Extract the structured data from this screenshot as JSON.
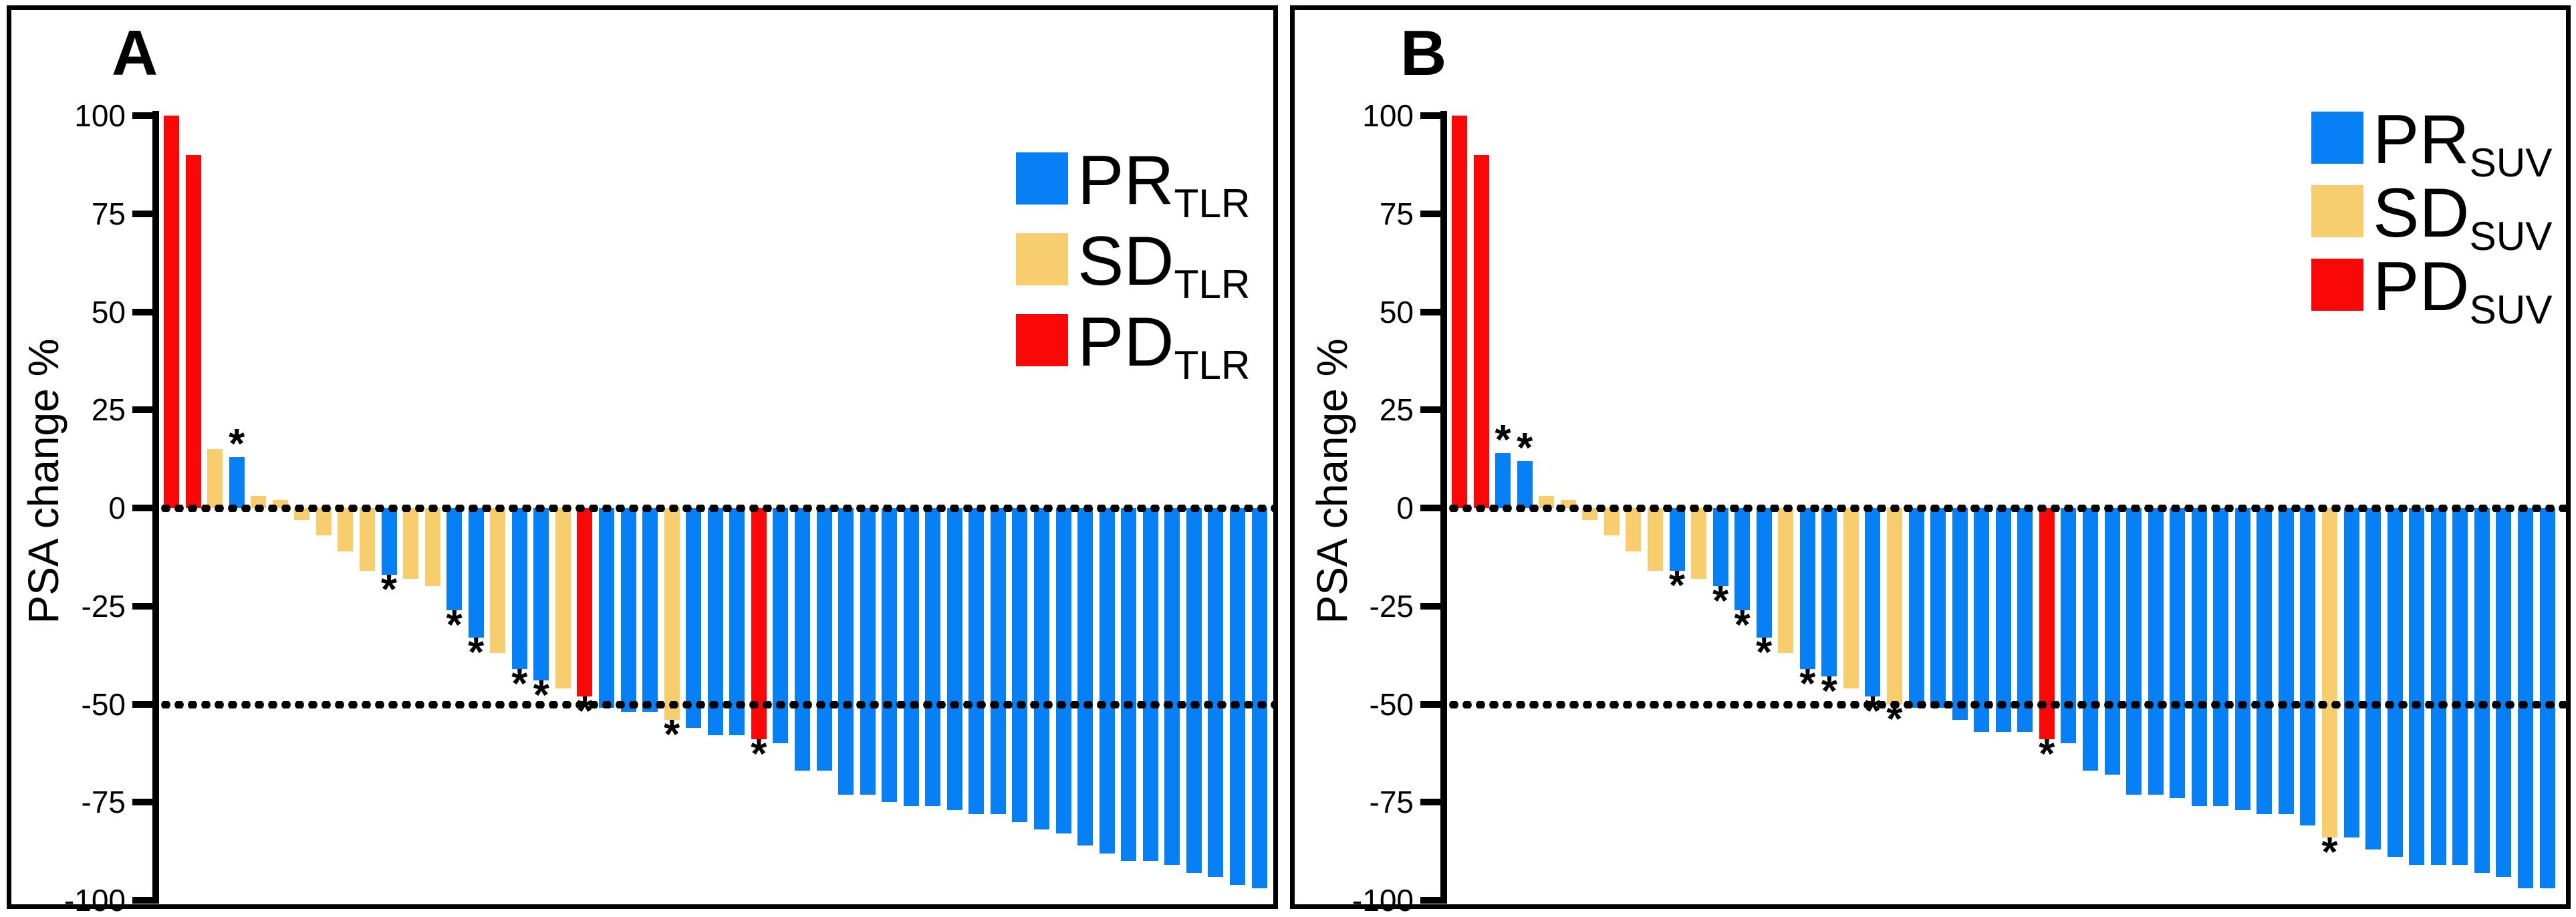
{
  "figure": {
    "colors": {
      "PR": "#0780f5",
      "SD": "#f8cd6e",
      "PD": "#fa0808"
    },
    "reference_line_color": "#000000",
    "axis_color": "#000000"
  },
  "chart_data": [
    {
      "type": "bar",
      "panel_label": "A",
      "title": "",
      "xlabel": "",
      "ylabel": "PSA change %",
      "ylim": [
        -100,
        100
      ],
      "yticks": [
        100,
        75,
        50,
        25,
        0,
        -25,
        -50,
        -75,
        -100
      ],
      "reference_lines": [
        0,
        -50
      ],
      "grid": false,
      "legend_position": "top-right",
      "legend": [
        {
          "label": "PR",
          "subscript": "TLR",
          "color_key": "PR"
        },
        {
          "label": "SD",
          "subscript": "TLR",
          "color_key": "SD"
        },
        {
          "label": "PD",
          "subscript": "TLR",
          "color_key": "PD"
        }
      ],
      "bars": [
        {
          "value": 100,
          "group": "PD"
        },
        {
          "value": 90,
          "group": "PD"
        },
        {
          "value": 15,
          "group": "SD"
        },
        {
          "value": 13,
          "group": "PR",
          "star": "above"
        },
        {
          "value": 3,
          "group": "SD"
        },
        {
          "value": 2,
          "group": "SD"
        },
        {
          "value": -3,
          "group": "SD"
        },
        {
          "value": -7,
          "group": "SD"
        },
        {
          "value": -11,
          "group": "SD"
        },
        {
          "value": -16,
          "group": "SD"
        },
        {
          "value": -17,
          "group": "PR",
          "star": "below"
        },
        {
          "value": -18,
          "group": "SD"
        },
        {
          "value": -20,
          "group": "SD"
        },
        {
          "value": -26,
          "group": "PR",
          "star": "below"
        },
        {
          "value": -33,
          "group": "PR",
          "star": "below"
        },
        {
          "value": -37,
          "group": "SD"
        },
        {
          "value": -41,
          "group": "PR",
          "star": "below"
        },
        {
          "value": -44,
          "group": "PR",
          "star": "below"
        },
        {
          "value": -46,
          "group": "SD"
        },
        {
          "value": -48,
          "group": "PD",
          "star": "below"
        },
        {
          "value": -51,
          "group": "PR"
        },
        {
          "value": -52,
          "group": "PR"
        },
        {
          "value": -52,
          "group": "PR"
        },
        {
          "value": -54,
          "group": "SD",
          "star": "below"
        },
        {
          "value": -56,
          "group": "PR"
        },
        {
          "value": -58,
          "group": "PR"
        },
        {
          "value": -58,
          "group": "PR"
        },
        {
          "value": -59,
          "group": "PD",
          "star": "below"
        },
        {
          "value": -60,
          "group": "PR"
        },
        {
          "value": -67,
          "group": "PR"
        },
        {
          "value": -67,
          "group": "PR"
        },
        {
          "value": -73,
          "group": "PR"
        },
        {
          "value": -73,
          "group": "PR"
        },
        {
          "value": -75,
          "group": "PR"
        },
        {
          "value": -76,
          "group": "PR"
        },
        {
          "value": -76,
          "group": "PR"
        },
        {
          "value": -77,
          "group": "PR"
        },
        {
          "value": -78,
          "group": "PR"
        },
        {
          "value": -78,
          "group": "PR"
        },
        {
          "value": -80,
          "group": "PR"
        },
        {
          "value": -82,
          "group": "PR"
        },
        {
          "value": -83,
          "group": "PR"
        },
        {
          "value": -86,
          "group": "PR"
        },
        {
          "value": -88,
          "group": "PR"
        },
        {
          "value": -90,
          "group": "PR"
        },
        {
          "value": -90,
          "group": "PR"
        },
        {
          "value": -91,
          "group": "PR"
        },
        {
          "value": -93,
          "group": "PR"
        },
        {
          "value": -94,
          "group": "PR"
        },
        {
          "value": -96,
          "group": "PR"
        },
        {
          "value": -97,
          "group": "PR"
        }
      ]
    },
    {
      "type": "bar",
      "panel_label": "B",
      "title": "",
      "xlabel": "",
      "ylabel": "PSA change %",
      "ylim": [
        -100,
        100
      ],
      "yticks": [
        100,
        75,
        50,
        25,
        0,
        -25,
        -50,
        -75,
        -100
      ],
      "reference_lines": [
        0,
        -50
      ],
      "grid": false,
      "legend_position": "top-right",
      "legend": [
        {
          "label": "PR",
          "subscript": "SUV",
          "color_key": "PR"
        },
        {
          "label": "SD",
          "subscript": "SUV",
          "color_key": "SD"
        },
        {
          "label": "PD",
          "subscript": "SUV",
          "color_key": "PD"
        }
      ],
      "bars": [
        {
          "value": 100,
          "group": "PD"
        },
        {
          "value": 90,
          "group": "PD"
        },
        {
          "value": 14,
          "group": "PR",
          "star": "above"
        },
        {
          "value": 12,
          "group": "PR",
          "star": "above"
        },
        {
          "value": 3,
          "group": "SD"
        },
        {
          "value": 2,
          "group": "SD"
        },
        {
          "value": -3,
          "group": "SD"
        },
        {
          "value": -7,
          "group": "SD"
        },
        {
          "value": -11,
          "group": "SD"
        },
        {
          "value": -16,
          "group": "SD"
        },
        {
          "value": -16,
          "group": "PR",
          "star": "below"
        },
        {
          "value": -18,
          "group": "SD"
        },
        {
          "value": -20,
          "group": "PR",
          "star": "below"
        },
        {
          "value": -26,
          "group": "PR",
          "star": "below"
        },
        {
          "value": -33,
          "group": "PR",
          "star": "below"
        },
        {
          "value": -37,
          "group": "SD"
        },
        {
          "value": -41,
          "group": "PR",
          "star": "below"
        },
        {
          "value": -43,
          "group": "PR",
          "star": "below"
        },
        {
          "value": -46,
          "group": "SD"
        },
        {
          "value": -48,
          "group": "PR",
          "star": "below"
        },
        {
          "value": -50,
          "group": "SD",
          "star": "below"
        },
        {
          "value": -51,
          "group": "PR"
        },
        {
          "value": -51,
          "group": "PR"
        },
        {
          "value": -54,
          "group": "PR"
        },
        {
          "value": -57,
          "group": "PR"
        },
        {
          "value": -57,
          "group": "PR"
        },
        {
          "value": -57,
          "group": "PR"
        },
        {
          "value": -59,
          "group": "PD",
          "star": "below"
        },
        {
          "value": -60,
          "group": "PR"
        },
        {
          "value": -67,
          "group": "PR"
        },
        {
          "value": -68,
          "group": "PR"
        },
        {
          "value": -73,
          "group": "PR"
        },
        {
          "value": -73,
          "group": "PR"
        },
        {
          "value": -74,
          "group": "PR"
        },
        {
          "value": -76,
          "group": "PR"
        },
        {
          "value": -76,
          "group": "PR"
        },
        {
          "value": -77,
          "group": "PR"
        },
        {
          "value": -78,
          "group": "PR"
        },
        {
          "value": -78,
          "group": "PR"
        },
        {
          "value": -81,
          "group": "PR"
        },
        {
          "value": -84,
          "group": "SD",
          "star": "below"
        },
        {
          "value": -84,
          "group": "PR"
        },
        {
          "value": -87,
          "group": "PR"
        },
        {
          "value": -89,
          "group": "PR"
        },
        {
          "value": -91,
          "group": "PR"
        },
        {
          "value": -91,
          "group": "PR"
        },
        {
          "value": -91,
          "group": "PR"
        },
        {
          "value": -93,
          "group": "PR"
        },
        {
          "value": -94,
          "group": "PR"
        },
        {
          "value": -97,
          "group": "PR"
        },
        {
          "value": -97,
          "group": "PR"
        }
      ]
    }
  ]
}
